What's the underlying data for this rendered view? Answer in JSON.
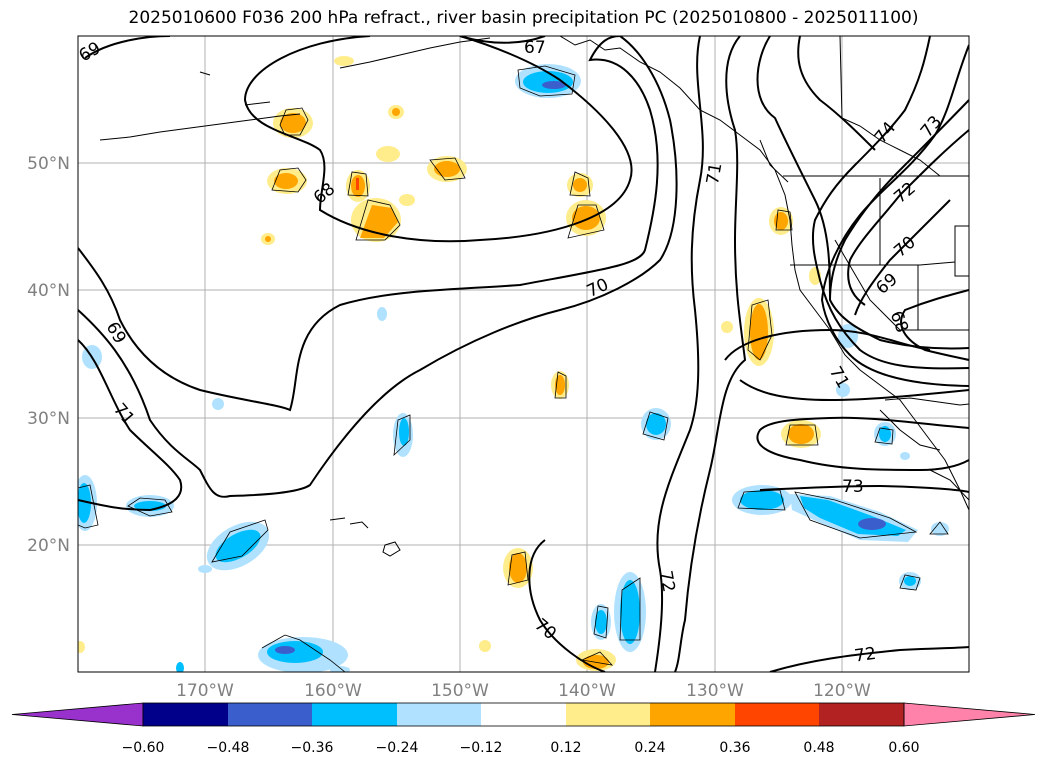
{
  "title": "2025010600 F036 200 hPa refract., river basin precipitation PC (2025010800 - 2025011100)",
  "map": {
    "lat_labels": [
      "50°N",
      "40°N",
      "30°N",
      "20°N"
    ],
    "lon_labels": [
      "170°W",
      "160°W",
      "150°W",
      "140°W",
      "130°W",
      "120°W"
    ],
    "contour_labels": [
      "69",
      "67",
      "68",
      "69",
      "71",
      "70",
      "71",
      "74",
      "73",
      "72",
      "70",
      "69",
      "68",
      "71",
      "73",
      "72",
      "72",
      "70"
    ]
  },
  "colorbar": {
    "ticks": [
      "−0.60",
      "−0.48",
      "−0.36",
      "−0.24",
      "−0.12",
      "0.12",
      "0.24",
      "0.36",
      "0.48",
      "0.60"
    ],
    "colors": [
      "#9932cc",
      "#00008b",
      "#3a5fcd",
      "#00bfff",
      "#b0e2ff",
      "#ffffff",
      "#ffec8b",
      "#ffa500",
      "#ff4500",
      "#b22222",
      "#ff82ab"
    ]
  }
}
